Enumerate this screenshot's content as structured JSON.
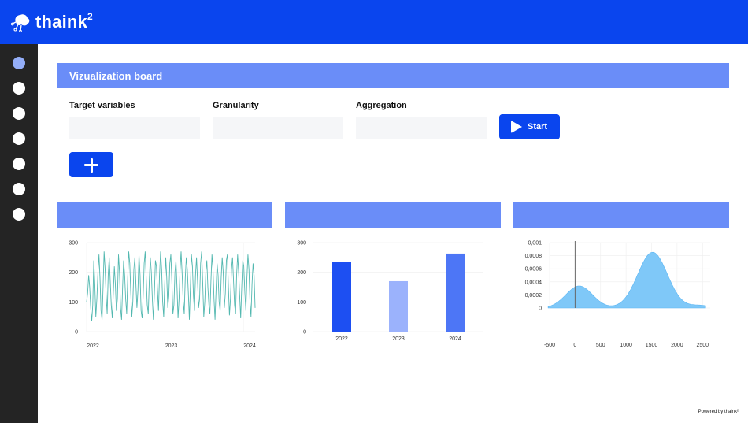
{
  "app": {
    "logo_text": "thaink",
    "logo_sup": "2"
  },
  "sidebar": {
    "items": [
      {
        "active": true
      },
      {
        "active": false
      },
      {
        "active": false
      },
      {
        "active": false
      },
      {
        "active": false
      },
      {
        "active": false
      },
      {
        "active": false
      }
    ]
  },
  "board": {
    "title": "Vizualization board",
    "fields": [
      {
        "label": "Target variables",
        "value": "",
        "placeholder": ""
      },
      {
        "label": "Granularity",
        "value": "",
        "placeholder": ""
      },
      {
        "label": "Aggregation",
        "value": "",
        "placeholder": ""
      }
    ],
    "start_label": "Start"
  },
  "colors": {
    "brand": "#0a45ee",
    "header": "#6a8df8",
    "sidebar": "#242424",
    "line": "#53b8b0",
    "bar_dark": "#1d4ff2",
    "bar_light": "#9bb2fc",
    "bar_mid": "#4d76f6",
    "density": "#7fc8f8"
  },
  "chart_data": [
    {
      "type": "line",
      "x_ticks": [
        "2022",
        "2023",
        "2024"
      ],
      "y_ticks": [
        "0",
        "100",
        "200",
        "300"
      ],
      "ylim": [
        0,
        300
      ],
      "x_range": [
        2022,
        2024.15
      ],
      "series": [
        {
          "values": [
            100,
            130,
            190,
            150,
            80,
            35,
            90,
            240,
            160,
            50,
            110,
            200,
            260,
            180,
            70,
            40,
            150,
            270,
            210,
            120,
            60,
            190,
            250,
            170,
            90,
            45,
            130,
            220,
            160,
            70,
            110,
            260,
            200,
            80,
            40,
            150,
            240,
            190,
            110,
            60,
            180,
            270,
            230,
            130,
            50,
            100,
            210,
            250,
            160,
            80,
            140,
            260,
            190,
            70,
            45,
            120,
            230,
            270,
            180,
            90,
            60,
            170,
            250,
            200,
            110,
            40,
            130,
            240,
            220,
            140,
            70,
            190,
            270,
            210,
            100,
            50,
            160,
            250,
            180,
            80,
            120,
            230,
            260,
            170,
            60,
            90,
            200,
            240,
            150,
            45,
            110,
            210,
            270,
            190,
            100,
            60,
            180,
            250,
            210,
            130,
            40,
            150,
            260,
            220,
            120,
            70,
            190,
            250,
            170,
            80,
            110,
            230,
            270,
            160,
            50,
            100,
            200,
            240,
            150,
            90,
            60,
            170,
            260,
            210,
            110,
            40,
            140,
            230,
            190,
            100,
            70,
            180,
            250,
            200,
            80,
            130,
            240,
            260,
            150,
            55,
            110,
            210,
            250,
            170,
            90,
            60,
            190,
            260,
            200,
            120,
            45,
            150,
            240,
            220,
            130,
            70,
            180,
            260,
            210,
            100,
            50,
            160,
            230,
            190,
            80
          ]
        }
      ]
    },
    {
      "type": "bar",
      "categories": [
        "2022",
        "2023",
        "2024"
      ],
      "values": [
        235,
        170,
        263
      ],
      "y_ticks": [
        "0",
        "100",
        "200",
        "300"
      ],
      "ylim": [
        0,
        300
      ]
    },
    {
      "type": "area",
      "x_ticks": [
        "-500",
        "0",
        "500",
        "1000",
        "1500",
        "2000",
        "2500"
      ],
      "y_ticks": [
        "0",
        "0,0002",
        "0,0004",
        "0,0006",
        "0,0008",
        "0,001"
      ],
      "xlim": [
        -500,
        2650
      ],
      "ylim": [
        0,
        0.001
      ],
      "marker_x": 0,
      "components": [
        {
          "mean": 80,
          "sd": 260,
          "weight": 0.22
        },
        {
          "mean": 1520,
          "sd": 290,
          "weight": 0.62
        },
        {
          "mean": 2450,
          "sd": 200,
          "weight": 0.02
        }
      ]
    }
  ],
  "footer": {
    "text": "Powered by thaink²"
  }
}
